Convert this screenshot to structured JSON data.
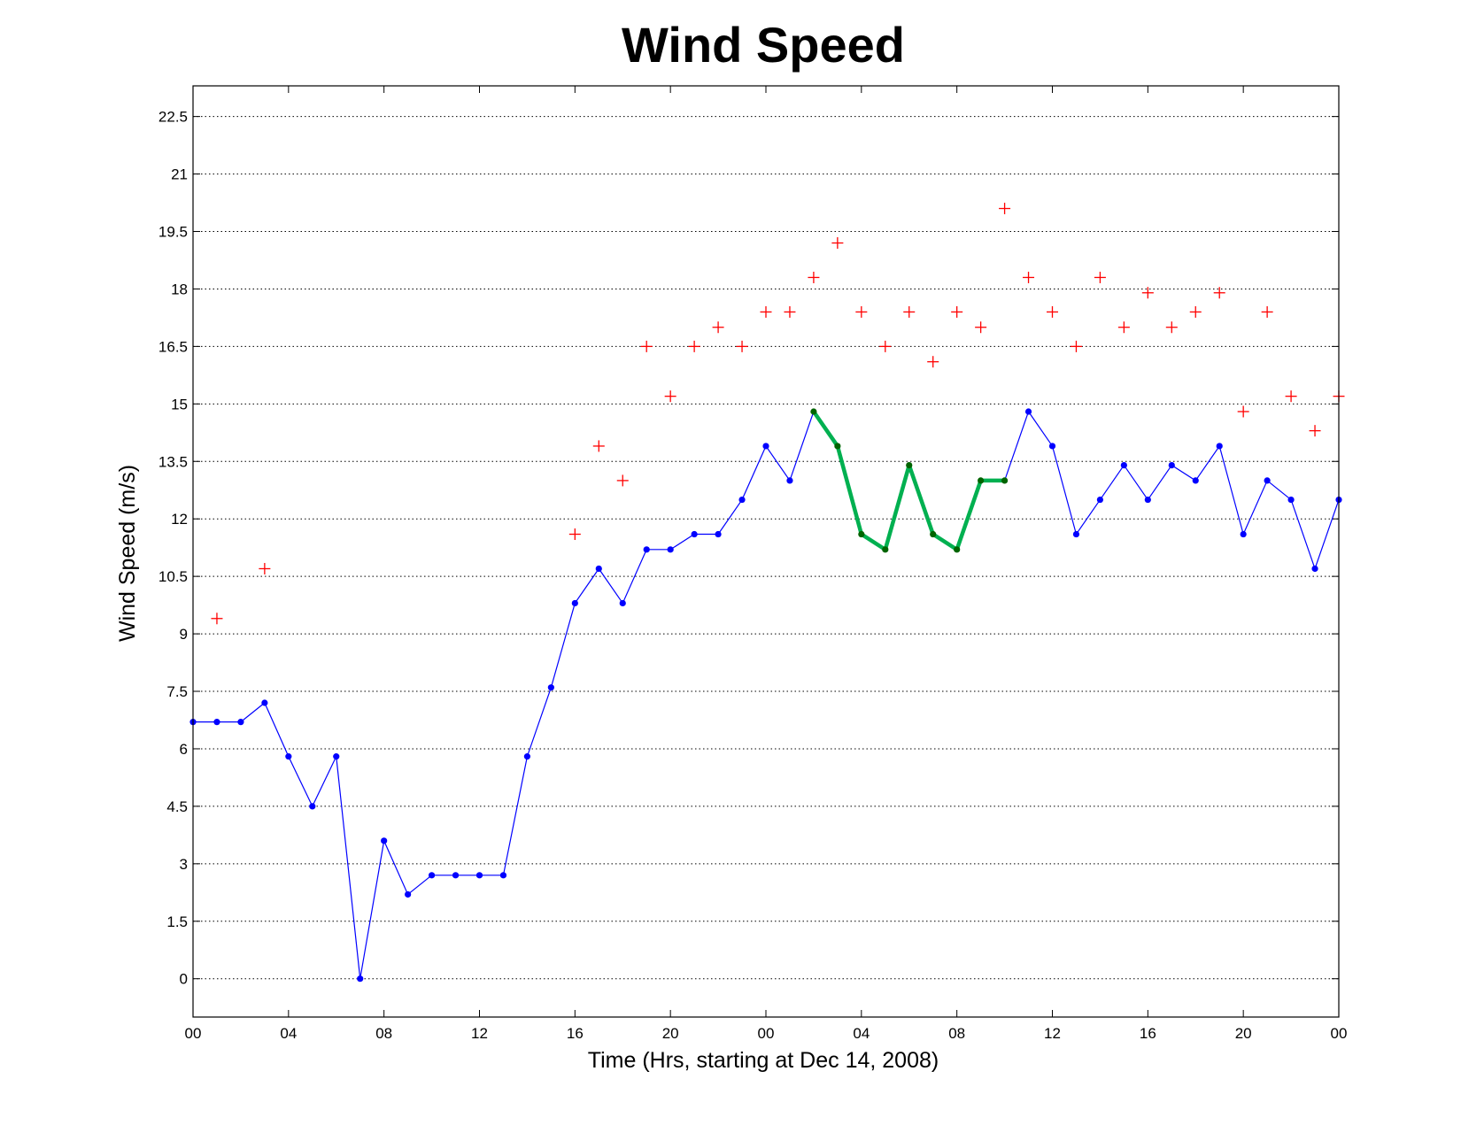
{
  "chart_data": {
    "type": "line",
    "title": "Wind Speed",
    "xlabel": "Time (Hrs, starting at Dec 14, 2008)",
    "ylabel": "Wind Speed (m/s)",
    "x_tick_labels": [
      "00",
      "04",
      "08",
      "12",
      "16",
      "20",
      "00",
      "04",
      "08",
      "12",
      "16",
      "20",
      "00"
    ],
    "x_tick_hours": [
      0,
      4,
      8,
      12,
      16,
      20,
      24,
      28,
      32,
      36,
      40,
      44,
      48
    ],
    "xlim": [
      0,
      48
    ],
    "y_ticks": [
      0,
      1.5,
      3,
      4.5,
      6,
      7.5,
      9,
      10.5,
      12,
      13.5,
      15,
      16.5,
      18,
      19.5,
      21,
      22.5
    ],
    "y_tick_labels": [
      "0",
      "1.5",
      "3",
      "4.5",
      "6",
      "7.5",
      "9",
      "10.5",
      "12",
      "13.5",
      "15",
      "16.5",
      "18",
      "19.5",
      "21",
      "22.5"
    ],
    "ylim": [
      -1,
      23.3
    ],
    "grid": "horizontal dotted",
    "colors": {
      "line": "#0000ff",
      "highlight": "#00b050",
      "highlight_marker": "#006400",
      "gust": "#ff0000",
      "grid": "#000000"
    },
    "series": [
      {
        "style": "blue line with dot markers",
        "x": [
          0,
          1,
          2,
          3,
          4,
          5,
          6,
          7,
          8,
          9,
          10,
          11,
          12,
          13,
          14,
          15,
          16,
          17,
          18,
          19,
          20,
          21,
          22,
          23,
          24,
          25,
          26,
          27,
          28,
          29,
          30,
          31,
          32,
          33,
          34,
          35,
          36,
          37,
          38,
          39,
          40,
          41,
          42,
          43,
          44,
          45,
          46,
          47,
          48
        ],
        "values": [
          6.7,
          6.7,
          6.7,
          7.2,
          5.8,
          4.5,
          5.8,
          0,
          3.6,
          2.2,
          2.7,
          2.7,
          2.7,
          2.7,
          5.8,
          7.6,
          9.8,
          10.7,
          9.8,
          11.2,
          11.2,
          11.6,
          11.6,
          12.5,
          13.9,
          13.0,
          14.8,
          13.9,
          11.6,
          11.2,
          13.4,
          11.6,
          11.2,
          13.0,
          13.0,
          14.8,
          13.9,
          11.6,
          12.5,
          13.4,
          12.5,
          13.4,
          13.0,
          13.9,
          11.6,
          13.0,
          12.5,
          10.7,
          12.5
        ]
      },
      {
        "style": "thick green line with dark green dot markers",
        "x": [
          26,
          27,
          28,
          29,
          30,
          31,
          32,
          33,
          34
        ],
        "values": [
          14.8,
          13.9,
          11.6,
          11.2,
          13.4,
          11.6,
          11.2,
          13.0,
          13.0
        ]
      },
      {
        "style": "red plus markers",
        "x": [
          1,
          3,
          16,
          17,
          18,
          19,
          20,
          21,
          22,
          23,
          24,
          25,
          26,
          27,
          28,
          29,
          30,
          31,
          32,
          33,
          34,
          35,
          36,
          37,
          38,
          39,
          40,
          41,
          42,
          43,
          44,
          45,
          46,
          47,
          48
        ],
        "values": [
          9.4,
          10.7,
          11.6,
          13.9,
          13.0,
          16.5,
          15.2,
          16.5,
          17.0,
          16.5,
          17.4,
          17.4,
          18.3,
          19.2,
          17.4,
          16.5,
          17.4,
          16.1,
          17.4,
          17.0,
          20.1,
          18.3,
          17.4,
          16.5,
          18.3,
          17.0,
          17.9,
          17.0,
          17.4,
          17.9,
          14.8,
          17.4,
          15.2,
          14.3,
          15.2
        ]
      }
    ]
  }
}
